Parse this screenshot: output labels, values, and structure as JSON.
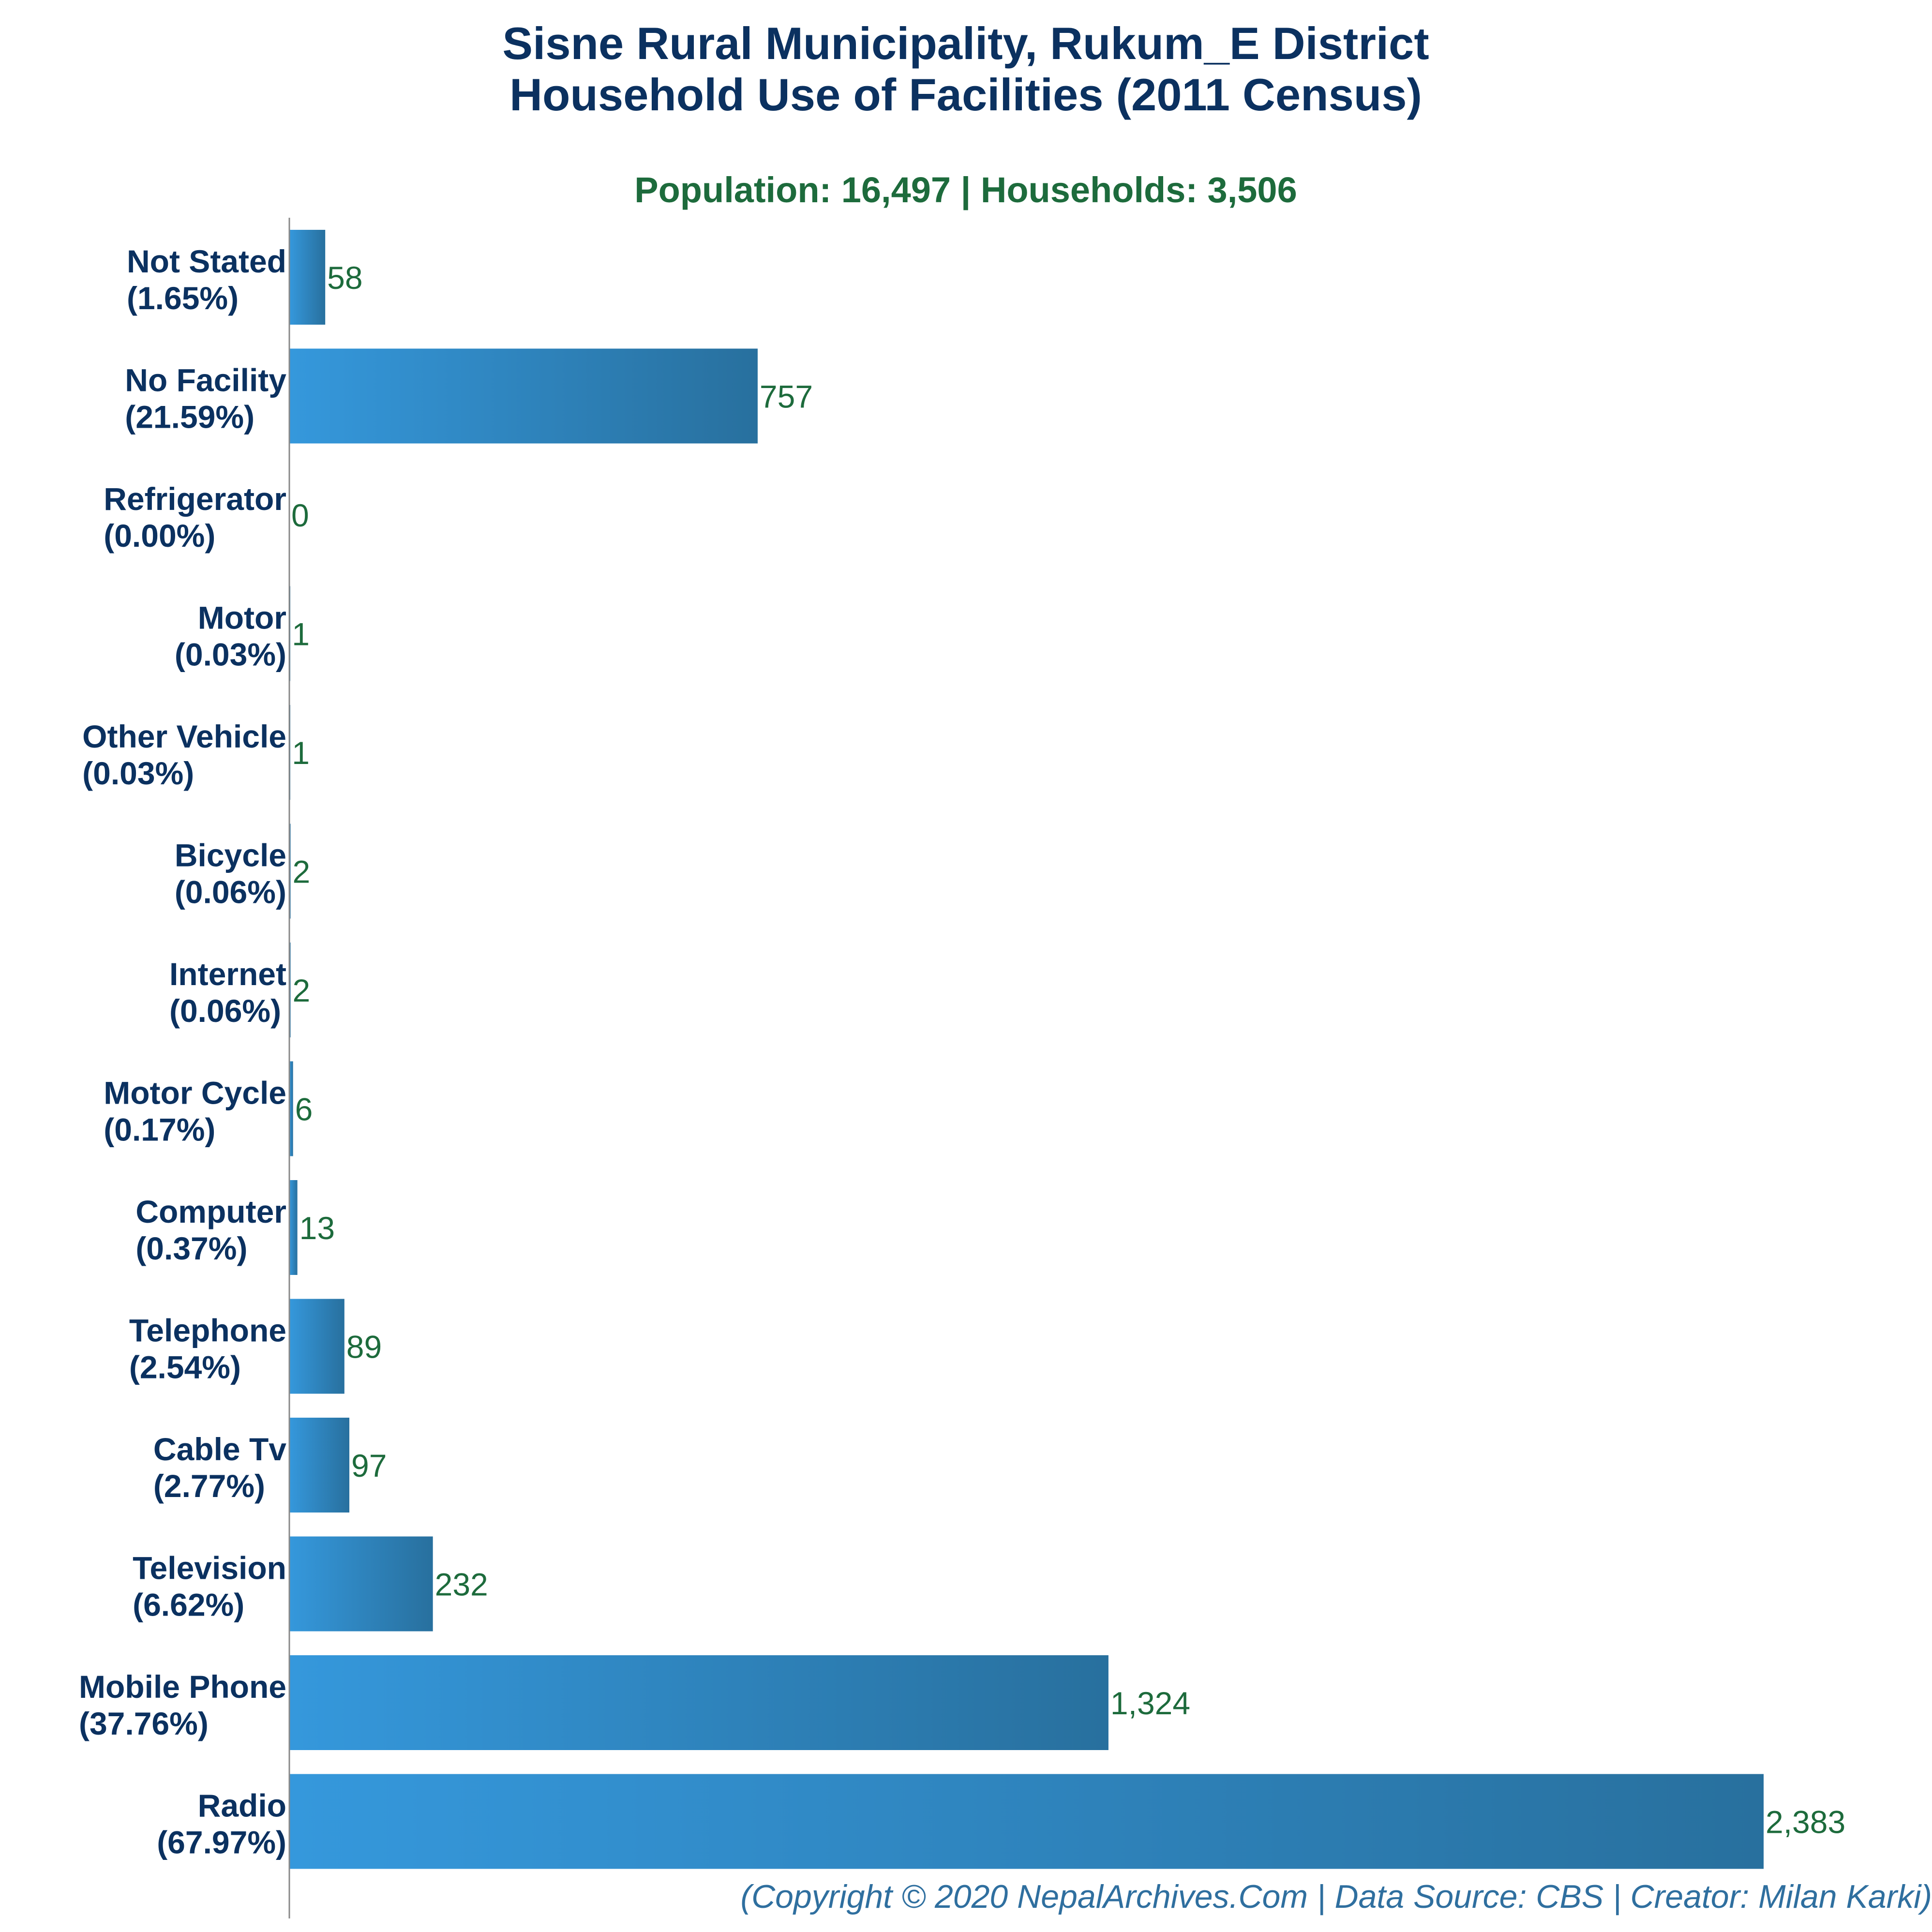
{
  "chart_data": {
    "type": "bar",
    "orientation": "horizontal",
    "title_lines": [
      "Sisne Rural Municipality, Rukum_E District",
      "Household Use of Facilities (2011 Census)"
    ],
    "subtitle": "Population: 16,497 | Households: 3,506",
    "xlabel": "",
    "ylabel": "",
    "categories": [
      {
        "name": "Not Stated",
        "pct": "(1.65%)",
        "value": 58,
        "value_label": "58"
      },
      {
        "name": "No Facility",
        "pct": "(21.59%)",
        "value": 757,
        "value_label": "757"
      },
      {
        "name": "Refrigerator",
        "pct": "(0.00%)",
        "value": 0,
        "value_label": "0"
      },
      {
        "name": "Motor",
        "pct": "(0.03%)",
        "value": 1,
        "value_label": "1"
      },
      {
        "name": "Other Vehicle",
        "pct": "(0.03%)",
        "value": 1,
        "value_label": "1"
      },
      {
        "name": "Bicycle",
        "pct": "(0.06%)",
        "value": 2,
        "value_label": "2"
      },
      {
        "name": "Internet",
        "pct": "(0.06%)",
        "value": 2,
        "value_label": "2"
      },
      {
        "name": "Motor Cycle",
        "pct": "(0.17%)",
        "value": 6,
        "value_label": "6"
      },
      {
        "name": "Computer",
        "pct": "(0.37%)",
        "value": 13,
        "value_label": "13"
      },
      {
        "name": "Telephone",
        "pct": "(2.54%)",
        "value": 89,
        "value_label": "89"
      },
      {
        "name": "Cable Tv",
        "pct": "(2.77%)",
        "value": 97,
        "value_label": "97"
      },
      {
        "name": "Television",
        "pct": "(6.62%)",
        "value": 232,
        "value_label": "232"
      },
      {
        "name": "Mobile Phone",
        "pct": "(37.76%)",
        "value": 1324,
        "value_label": "1,324"
      },
      {
        "name": "Radio",
        "pct": "(67.97%)",
        "value": 2383,
        "value_label": "2,383"
      }
    ],
    "xlim": [
      0,
      2383
    ],
    "grid": false,
    "legend": "none",
    "colors": {
      "bar_light": "#3598dc",
      "bar_dark": "#28709e",
      "title": "#0b3160",
      "subtitle": "#1d6b3c",
      "value_label": "#1d6b3c",
      "footer": "#2f6f9f",
      "axis": "#888888"
    }
  },
  "footer": "(Copyright © 2020 NepalArchives.Com | Data Source: CBS | Creator: Milan Karki)"
}
